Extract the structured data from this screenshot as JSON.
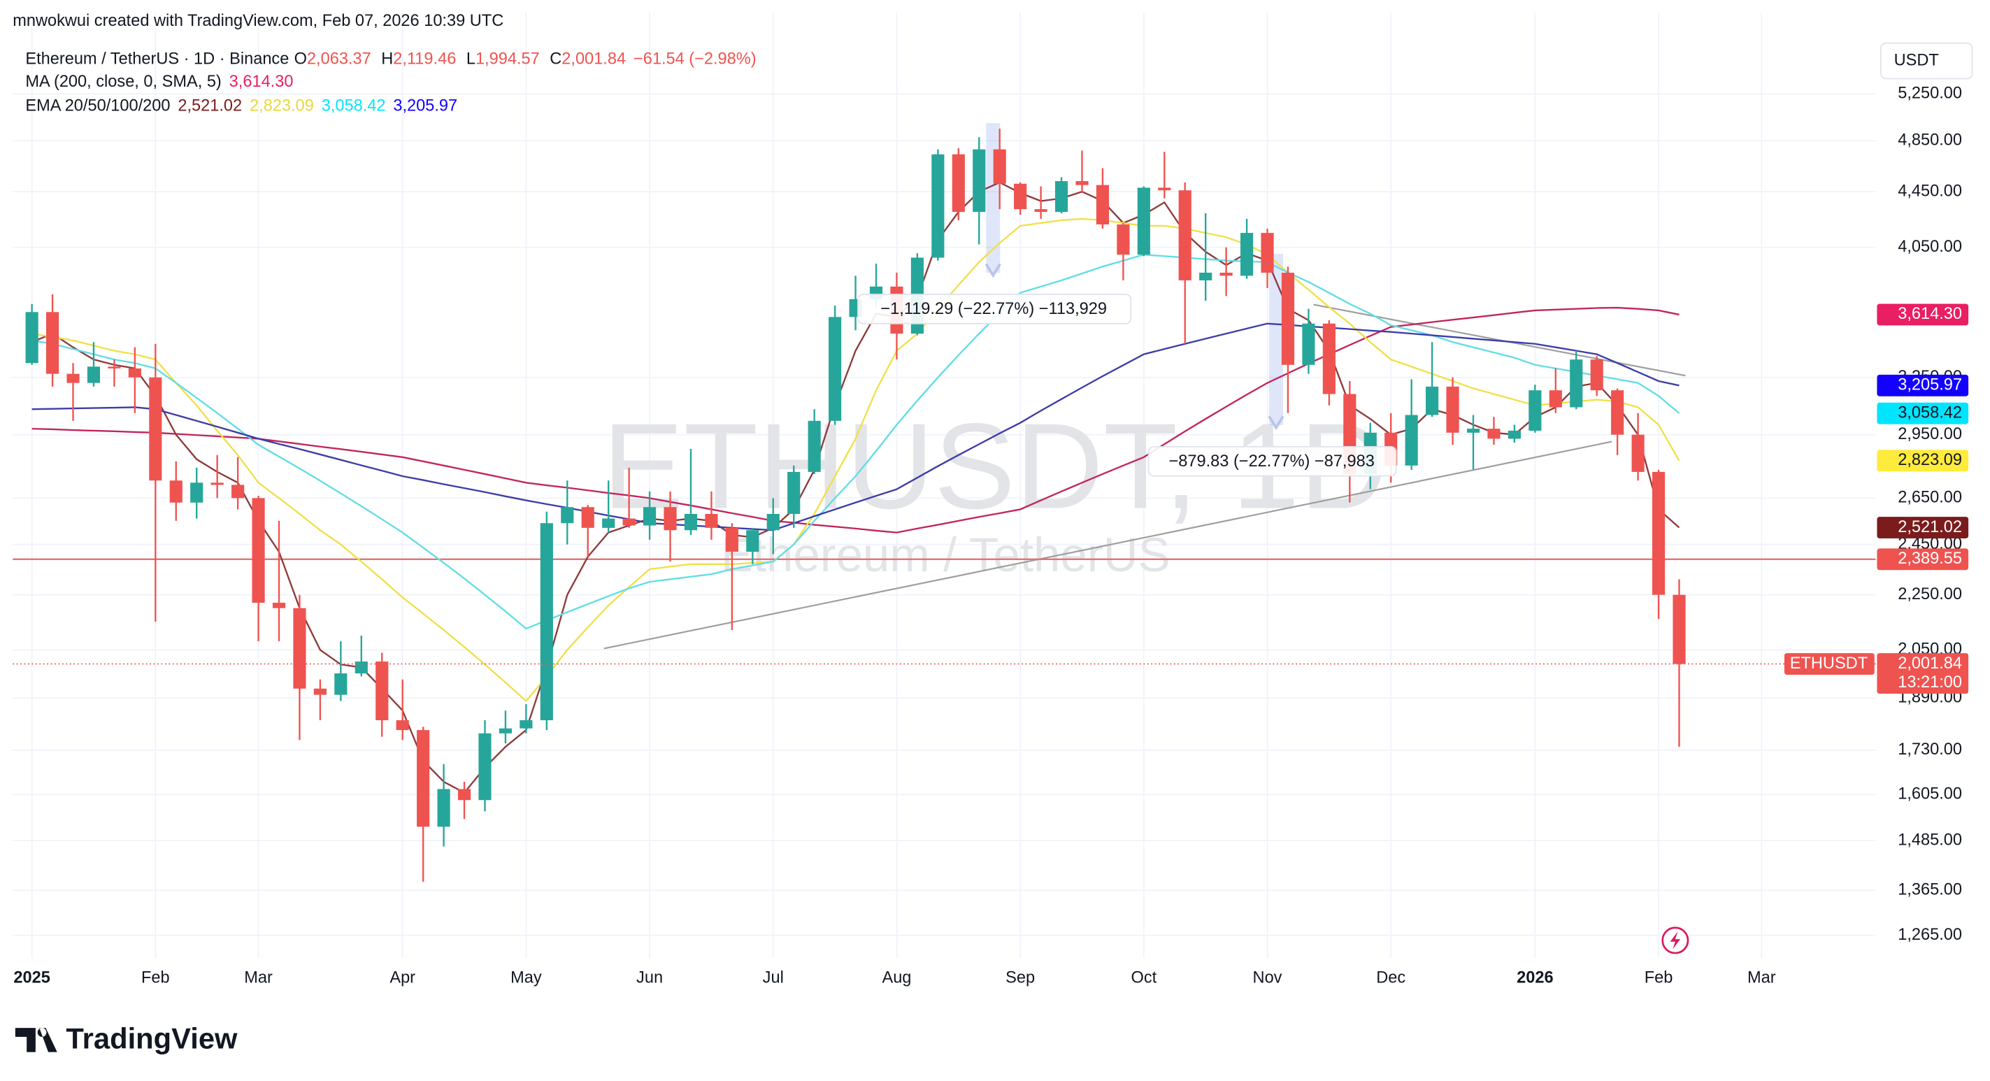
{
  "header": {
    "credit": "mnwokwui created with TradingView.com, Feb 07, 2026 10:39 UTC",
    "symbol": "Ethereum / TetherUS · 1D · Binance",
    "ohlc": [
      {
        "key": "O",
        "value": "2,063.37"
      },
      {
        "key": "H",
        "value": "2,119.46"
      },
      {
        "key": "L",
        "value": "1,994.57"
      },
      {
        "key": "C",
        "value": "2,001.84"
      }
    ],
    "change": "−61.54 (−2.98%)"
  },
  "watermark": {
    "symbol": "ETHUSDT, 1D",
    "name": "Ethereum / TetherUS"
  },
  "currency": "USDT",
  "brand": "TradingView",
  "chart_data": {
    "type": "candlestick",
    "log_scale": true,
    "grid": true,
    "up_color": "#26a69a",
    "down_color": "#ef5350",
    "categories": [
      "2025",
      null,
      null,
      null,
      null,
      null,
      "Feb",
      null,
      null,
      null,
      null,
      "Mar",
      null,
      null,
      null,
      null,
      null,
      null,
      "Apr",
      null,
      null,
      null,
      null,
      null,
      "May",
      null,
      null,
      null,
      null,
      null,
      "Jun",
      null,
      null,
      null,
      null,
      null,
      "Jul",
      null,
      null,
      null,
      null,
      null,
      "Aug",
      null,
      null,
      null,
      null,
      null,
      "Sep",
      null,
      null,
      null,
      null,
      null,
      "Oct",
      null,
      null,
      null,
      null,
      null,
      "Nov",
      null,
      null,
      null,
      null,
      null,
      "Dec",
      null,
      null,
      null,
      null,
      null,
      null,
      "2026",
      null,
      null,
      null,
      null,
      null,
      "Feb",
      null,
      null,
      null,
      null,
      "Mar"
    ],
    "open": [
      3330,
      3630,
      3270,
      3220,
      3310,
      3300,
      3250,
      2730,
      2630,
      2720,
      2710,
      2650,
      2220,
      2200,
      1920,
      1900,
      1970,
      2010,
      1820,
      1790,
      1520,
      1620,
      1590,
      1780,
      1795,
      1820,
      2540,
      2610,
      2520,
      2560,
      2530,
      2610,
      2510,
      2580,
      2520,
      2420,
      2510,
      2580,
      2770,
      3020,
      3600,
      3710,
      3790,
      3500,
      3980,
      4740,
      4300,
      4780,
      4510,
      4320,
      4300,
      4530,
      4500,
      4210,
      4000,
      4480,
      4460,
      3830,
      3880,
      3860,
      4150,
      3880,
      3320,
      3560,
      3160,
      2760,
      2960,
      2800,
      3050,
      3200,
      2960,
      2980,
      2930,
      2970,
      3180,
      3090,
      3350,
      3180,
      2950,
      2770,
      2250,
      null,
      null,
      null,
      null
    ],
    "high": [
      3680,
      3740,
      3330,
      3450,
      3350,
      3420,
      3440,
      2820,
      2790,
      2850,
      2840,
      2660,
      2550,
      2250,
      1950,
      2080,
      2100,
      2040,
      1950,
      1800,
      1690,
      1640,
      1820,
      1850,
      1870,
      2590,
      2730,
      2620,
      2730,
      2790,
      2680,
      2680,
      2880,
      2680,
      2540,
      2520,
      2650,
      2800,
      3080,
      3670,
      3860,
      3940,
      3880,
      4010,
      4780,
      4790,
      4880,
      4950,
      4520,
      4490,
      4560,
      4770,
      4630,
      4220,
      4490,
      4760,
      4520,
      4290,
      4050,
      4250,
      4180,
      3920,
      3650,
      3580,
      3230,
      3010,
      3060,
      3240,
      3450,
      3250,
      3050,
      3040,
      3000,
      3210,
      3300,
      3400,
      3370,
      3190,
      3060,
      2780,
      2310,
      null,
      null,
      null,
      null
    ],
    "low": [
      3320,
      3200,
      3020,
      3200,
      3200,
      3060,
      2150,
      2550,
      2560,
      2650,
      2600,
      2080,
      2080,
      1760,
      1820,
      1880,
      1960,
      1770,
      1760,
      1385,
      1470,
      1540,
      1560,
      1750,
      1780,
      1790,
      2450,
      2400,
      2500,
      2520,
      2470,
      2380,
      2490,
      2470,
      2120,
      2370,
      2410,
      2520,
      2760,
      3000,
      3520,
      3660,
      3350,
      3490,
      3960,
      4240,
      4070,
      4320,
      4280,
      4250,
      4290,
      4440,
      4180,
      3830,
      3990,
      4400,
      3440,
      3700,
      3730,
      3840,
      3780,
      3060,
      3270,
      3100,
      2630,
      2690,
      2720,
      2780,
      3040,
      2900,
      2780,
      2900,
      2910,
      2960,
      3060,
      3080,
      3150,
      2850,
      2730,
      2160,
      1740,
      null,
      null,
      null,
      null
    ],
    "close": [
      3630,
      3270,
      3220,
      3310,
      3300,
      3250,
      2730,
      2630,
      2720,
      2710,
      2650,
      2220,
      2200,
      1920,
      1900,
      1970,
      2010,
      1820,
      1790,
      1520,
      1620,
      1590,
      1780,
      1795,
      1820,
      2540,
      2610,
      2520,
      2560,
      2530,
      2610,
      2510,
      2580,
      2520,
      2420,
      2510,
      2580,
      2770,
      3020,
      3600,
      3710,
      3790,
      3500,
      3980,
      4740,
      4300,
      4780,
      4510,
      4320,
      4300,
      4530,
      4500,
      4210,
      4000,
      4480,
      4460,
      3830,
      3880,
      3860,
      4150,
      3880,
      3320,
      3560,
      3160,
      2760,
      2960,
      2800,
      3050,
      3200,
      2960,
      2980,
      2930,
      2970,
      3180,
      3090,
      3350,
      3180,
      2950,
      2770,
      2250,
      2001.84,
      null,
      null,
      null,
      null
    ],
    "ylim": [
      1217,
      5770
    ],
    "yticks": [
      {
        "value": 1265,
        "label": "1,265.00"
      },
      {
        "value": 1365,
        "label": "1,365.00"
      },
      {
        "value": 1485,
        "label": "1,485.00"
      },
      {
        "value": 1605,
        "label": "1,605.00"
      },
      {
        "value": 1730,
        "label": "1,730.00"
      },
      {
        "value": 1890,
        "label": "1,890.00"
      },
      {
        "value": 2050,
        "label": "2,050.00"
      },
      {
        "value": 2250,
        "label": "2,250.00"
      },
      {
        "value": 2450,
        "label": "2,450.00"
      },
      {
        "value": 2650,
        "label": "2,650.00"
      },
      {
        "value": 2950,
        "label": "2,950.00"
      },
      {
        "value": 3250,
        "label": "3,250.00"
      },
      {
        "value": 4050,
        "label": "4,050.00"
      },
      {
        "value": 4450,
        "label": "4,450.00"
      },
      {
        "value": 4850,
        "label": "4,850.00"
      },
      {
        "value": 5250,
        "label": "5,250.00"
      }
    ],
    "indicators": [
      {
        "label": "MA (200, close, 0, SMA, 5)",
        "series": [
          {
            "color": "#c2255c",
            "tag_color": "#e91e63",
            "tag_text_color": "#ffffff",
            "value_label": "3,614.30",
            "values": [
              2980,
              2977,
              2973,
              2970,
              2967,
              2963,
              2960,
              2954,
              2948,
              2942,
              2936,
              2930,
              2917,
              2904,
              2891,
              2879,
              2866,
              2853,
              2840,
              2820,
              2800,
              2780,
              2760,
              2740,
              2720,
              2708,
              2697,
              2685,
              2673,
              2662,
              2650,
              2633,
              2617,
              2600,
              2583,
              2567,
              2550,
              2542,
              2533,
              2525,
              2517,
              2508,
              2500,
              2517,
              2533,
              2550,
              2567,
              2583,
              2600,
              2640,
              2680,
              2720,
              2760,
              2800,
              2840,
              2903,
              2967,
              3030,
              3093,
              3157,
              3220,
              3273,
              3327,
              3380,
              3433,
              3487,
              3540,
              3554,
              3569,
              3583,
              3597,
              3611,
              3626,
              3640,
              3645,
              3650,
              3655,
              3657,
              3650,
              3640,
              3614.3,
              null,
              null,
              null,
              null
            ]
          }
        ]
      },
      {
        "label": "EMA 20/50/100/200",
        "series": [
          {
            "color": "#8e3b3b",
            "tag_color": "#7b1c1c",
            "tag_text_color": "#ffffff",
            "value_label": "2,521.02",
            "values": [
              3450,
              3500,
              3420,
              3350,
              3320,
              3300,
              3150,
              2950,
              2830,
              2770,
              2720,
              2550,
              2420,
              2200,
              2050,
              2000,
              1990,
              1920,
              1850,
              1700,
              1640,
              1610,
              1680,
              1740,
              1790,
              1990,
              2250,
              2400,
              2500,
              2530,
              2560,
              2550,
              2560,
              2550,
              2490,
              2480,
              2520,
              2600,
              2780,
              3100,
              3400,
              3620,
              3600,
              3720,
              4100,
              4300,
              4450,
              4520,
              4440,
              4380,
              4400,
              4450,
              4380,
              4220,
              4280,
              4370,
              4150,
              4020,
              3930,
              4010,
              3960,
              3650,
              3580,
              3400,
              3100,
              3030,
              2950,
              2980,
              3080,
              3050,
              3000,
              2960,
              2950,
              3040,
              3090,
              3200,
              3220,
              3100,
              2950,
              2600,
              2521.02,
              null,
              null,
              null,
              null
            ]
          },
          {
            "color": "#f0e04a",
            "tag_color": "#ffeb3b",
            "tag_text_color": "#131722",
            "value_label": "2,823.09",
            "values": [
              3500,
              3480,
              3460,
              3430,
              3400,
              3380,
              3350,
              3220,
              3100,
              2970,
              2850,
              2720,
              2650,
              2580,
              2510,
              2450,
              2380,
              2310,
              2240,
              2180,
              2120,
              2060,
              2000,
              1940,
              1880,
              1960,
              2050,
              2130,
              2210,
              2280,
              2350,
              2360,
              2370,
              2370,
              2370,
              2375,
              2380,
              2450,
              2580,
              2750,
              2930,
              3180,
              3400,
              3500,
              3650,
              3800,
              3950,
              4080,
              4200,
              4220,
              4240,
              4250,
              4240,
              4220,
              4200,
              4200,
              4180,
              4150,
              4120,
              4070,
              4000,
              3880,
              3770,
              3660,
              3560,
              3450,
              3350,
              3310,
              3270,
              3230,
              3190,
              3160,
              3130,
              3100,
              3110,
              3120,
              3130,
              3120,
              3090,
              3000,
              2823.09,
              null,
              null,
              null,
              null
            ]
          },
          {
            "color": "#62dde6",
            "tag_color": "#00e5ff",
            "tag_text_color": "#131722",
            "value_label": "3,058.42",
            "values": [
              3460,
              3440,
              3410,
              3380,
              3350,
              3330,
              3300,
              3220,
              3140,
              3060,
              2980,
              2900,
              2843,
              2786,
              2729,
              2671,
              2614,
              2557,
              2500,
              2437,
              2375,
              2313,
              2250,
              2188,
              2125,
              2155,
              2185,
              2215,
              2245,
              2275,
              2300,
              2310,
              2320,
              2330,
              2350,
              2365,
              2380,
              2450,
              2550,
              2650,
              2750,
              2870,
              3000,
              3125,
              3250,
              3375,
              3500,
              3625,
              3750,
              3790,
              3830,
              3875,
              3920,
              3960,
              4000,
              3990,
              3980,
              3970,
              3960,
              3955,
              3950,
              3880,
              3820,
              3750,
              3680,
              3620,
              3550,
              3520,
              3490,
              3450,
              3420,
              3390,
              3360,
              3320,
              3300,
              3280,
              3260,
              3240,
              3220,
              3150,
              3058.42,
              null,
              null,
              null,
              null
            ]
          },
          {
            "color": "#3d3da8",
            "tag_color": "#1400ff",
            "tag_text_color": "#ffffff",
            "value_label": "3,205.97",
            "values": [
              3080,
              3082,
              3084,
              3086,
              3088,
              3090,
              3080,
              3050,
              3020,
              2990,
              2960,
              2930,
              2904,
              2879,
              2853,
              2827,
              2801,
              2776,
              2750,
              2732,
              2713,
              2695,
              2677,
              2658,
              2640,
              2623,
              2607,
              2590,
              2573,
              2557,
              2540,
              2535,
              2530,
              2525,
              2520,
              2515,
              2510,
              2540,
              2570,
              2600,
              2630,
              2660,
              2690,
              2743,
              2797,
              2850,
              2903,
              2957,
              3010,
              3072,
              3133,
              3195,
              3257,
              3318,
              3380,
              3410,
              3440,
              3470,
              3500,
              3530,
              3560,
              3552,
              3543,
              3535,
              3527,
              3518,
              3510,
              3500,
              3490,
              3480,
              3470,
              3460,
              3450,
              3440,
              3420,
              3400,
              3380,
              3330,
              3280,
              3230,
              3205.97,
              null,
              null,
              null,
              null
            ]
          }
        ]
      }
    ],
    "horizontal_line": {
      "value": 2389.55,
      "label": "2,389.55",
      "color": "#e57373",
      "tag_color": "#ef5350"
    },
    "last_price": {
      "value": 2001.84,
      "label": "2,001.84",
      "symbol": "ETHUSDT",
      "countdown": "13:21:00",
      "color": "#ef5350"
    },
    "measurements": [
      {
        "label": "−1,119.29 (−22.77%) −113,929"
      },
      {
        "label": "−879.83 (−22.77%) −87,983"
      }
    ]
  }
}
